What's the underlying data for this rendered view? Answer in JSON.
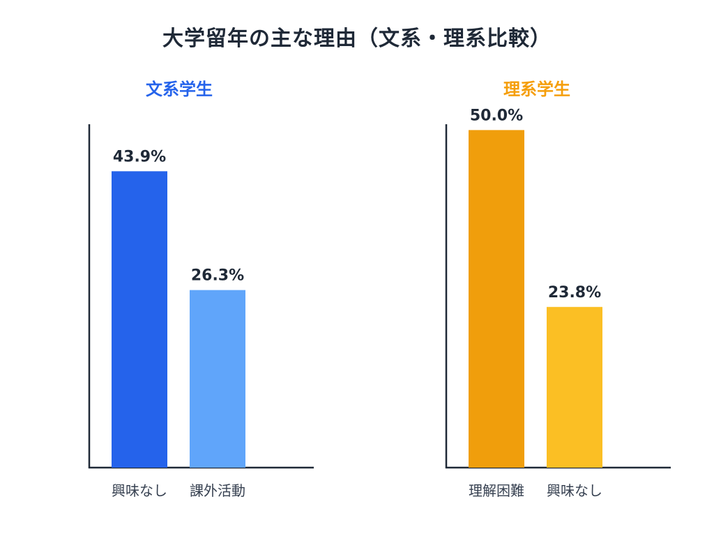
{
  "title": "大学留年の主な理由（文系・理系比較）",
  "chart_data": [
    {
      "type": "bar",
      "title": "文系学生",
      "title_color": "#2563eb",
      "categories": [
        "興味なし",
        "課外活動"
      ],
      "values": [
        43.9,
        26.3
      ],
      "value_labels": [
        "43.9%",
        "26.3%"
      ],
      "colors": [
        "#2563eb",
        "#60a5fa"
      ],
      "ylim": [
        0,
        55
      ]
    },
    {
      "type": "bar",
      "title": "理系学生",
      "title_color": "#f59e0b",
      "categories": [
        "理解困難",
        "興味なし"
      ],
      "values": [
        50.0,
        23.8
      ],
      "value_labels": [
        "50.0%",
        "23.8%"
      ],
      "colors": [
        "#f09e0c",
        "#fbbf24"
      ],
      "ylim": [
        0,
        55
      ]
    }
  ]
}
